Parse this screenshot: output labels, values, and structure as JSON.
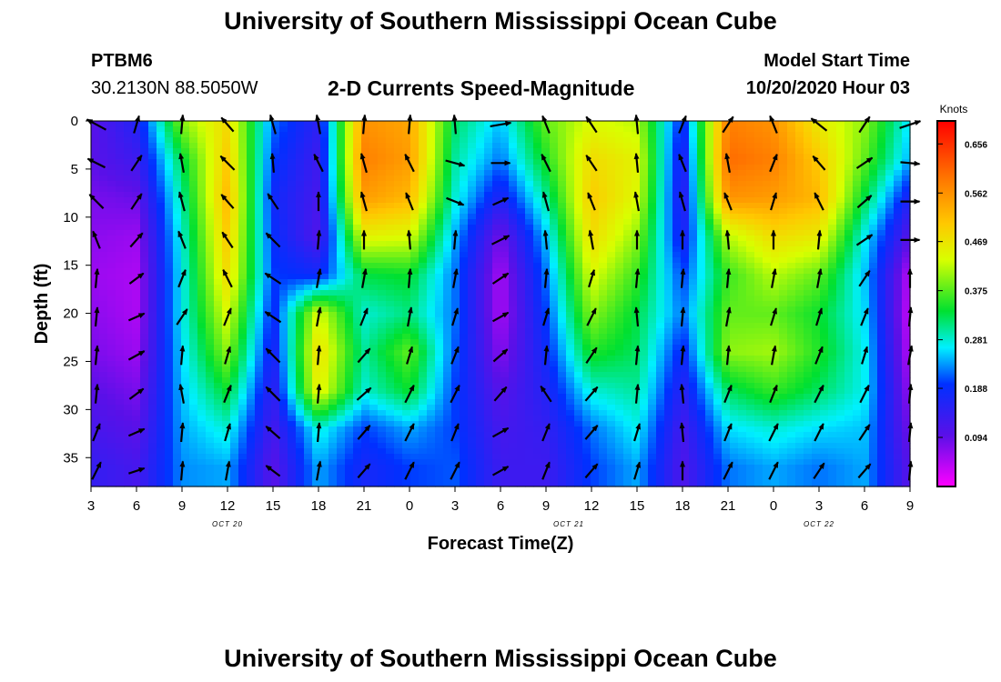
{
  "header": {
    "title": "University of Southern Mississippi Ocean Cube",
    "station_id": "PTBM6",
    "station_coords": "30.2130N 88.5050W",
    "subtitle": "2-D Currents Speed-Magnitude",
    "model_start_label": "Model Start Time",
    "model_start_time": "10/20/2020 Hour 03"
  },
  "footer": {
    "title": "University of Southern Mississippi Ocean Cube"
  },
  "chart_data": {
    "type": "heatmap",
    "xlabel": "Forecast Time(Z)",
    "ylabel": "Depth (ft)",
    "x_range": [
      3,
      57
    ],
    "y_range": [
      0,
      38
    ],
    "y_inverted": true,
    "x_ticks": [
      {
        "x": 3,
        "label": "3"
      },
      {
        "x": 6,
        "label": "6"
      },
      {
        "x": 9,
        "label": "9"
      },
      {
        "x": 12,
        "label": "12"
      },
      {
        "x": 15,
        "label": "15"
      },
      {
        "x": 18,
        "label": "18"
      },
      {
        "x": 21,
        "label": "21"
      },
      {
        "x": 24,
        "label": "0"
      },
      {
        "x": 27,
        "label": "3"
      },
      {
        "x": 30,
        "label": "6"
      },
      {
        "x": 33,
        "label": "9"
      },
      {
        "x": 36,
        "label": "12"
      },
      {
        "x": 39,
        "label": "15"
      },
      {
        "x": 42,
        "label": "18"
      },
      {
        "x": 45,
        "label": "21"
      },
      {
        "x": 48,
        "label": "0"
      },
      {
        "x": 51,
        "label": "3"
      },
      {
        "x": 54,
        "label": "6"
      },
      {
        "x": 57,
        "label": "9"
      }
    ],
    "date_labels": [
      {
        "x": 12,
        "label": "OCT 20"
      },
      {
        "x": 34.5,
        "label": "OCT 21"
      },
      {
        "x": 51,
        "label": "OCT 22"
      }
    ],
    "y_ticks": [
      0,
      5,
      10,
      15,
      20,
      25,
      30,
      35
    ],
    "colorbar": {
      "unit": "Knots",
      "min": 0.0,
      "max": 0.7,
      "ticks": [
        "0.094",
        "0.188",
        "0.281",
        "0.375",
        "0.469",
        "0.562",
        "0.656"
      ]
    },
    "depths": [
      0,
      4,
      8,
      12,
      16,
      20,
      24,
      28,
      32,
      36
    ],
    "times": [
      3,
      6,
      9,
      12,
      15,
      18,
      21,
      24,
      27,
      30,
      33,
      36,
      39,
      42,
      45,
      48,
      51,
      54,
      57
    ],
    "speed": [
      [
        0.1,
        0.16,
        0.4,
        0.48,
        0.22,
        0.15,
        0.56,
        0.54,
        0.32,
        0.25,
        0.38,
        0.44,
        0.42,
        0.18,
        0.58,
        0.56,
        0.46,
        0.4,
        0.26
      ],
      [
        0.1,
        0.13,
        0.33,
        0.5,
        0.2,
        0.13,
        0.58,
        0.55,
        0.3,
        0.22,
        0.35,
        0.48,
        0.45,
        0.15,
        0.6,
        0.58,
        0.5,
        0.38,
        0.24
      ],
      [
        0.08,
        0.09,
        0.3,
        0.52,
        0.18,
        0.12,
        0.55,
        0.52,
        0.28,
        0.16,
        0.3,
        0.5,
        0.44,
        0.14,
        0.56,
        0.55,
        0.52,
        0.33,
        0.16
      ],
      [
        0.07,
        0.06,
        0.28,
        0.5,
        0.19,
        0.11,
        0.45,
        0.44,
        0.24,
        0.08,
        0.25,
        0.48,
        0.4,
        0.16,
        0.42,
        0.48,
        0.46,
        0.27,
        0.1
      ],
      [
        0.06,
        0.05,
        0.27,
        0.48,
        0.2,
        0.18,
        0.33,
        0.34,
        0.22,
        0.05,
        0.22,
        0.44,
        0.36,
        0.2,
        0.36,
        0.42,
        0.38,
        0.25,
        0.04
      ],
      [
        0.07,
        0.05,
        0.27,
        0.44,
        0.18,
        0.44,
        0.28,
        0.31,
        0.22,
        0.05,
        0.2,
        0.4,
        0.33,
        0.22,
        0.38,
        0.38,
        0.34,
        0.26,
        0.03
      ],
      [
        0.08,
        0.06,
        0.26,
        0.4,
        0.16,
        0.48,
        0.3,
        0.38,
        0.21,
        0.07,
        0.18,
        0.35,
        0.32,
        0.18,
        0.4,
        0.41,
        0.35,
        0.27,
        0.04
      ],
      [
        0.1,
        0.08,
        0.25,
        0.34,
        0.14,
        0.46,
        0.28,
        0.34,
        0.2,
        0.1,
        0.16,
        0.28,
        0.3,
        0.15,
        0.32,
        0.36,
        0.32,
        0.27,
        0.06
      ],
      [
        0.12,
        0.1,
        0.24,
        0.28,
        0.12,
        0.28,
        0.2,
        0.24,
        0.2,
        0.12,
        0.14,
        0.22,
        0.27,
        0.12,
        0.26,
        0.28,
        0.26,
        0.25,
        0.08
      ],
      [
        0.14,
        0.12,
        0.23,
        0.24,
        0.1,
        0.24,
        0.17,
        0.2,
        0.21,
        0.13,
        0.13,
        0.2,
        0.24,
        0.11,
        0.22,
        0.24,
        0.22,
        0.24,
        0.1
      ]
    ],
    "vectors": [
      [
        [
          -0.55,
          0.3
        ],
        [
          0.15,
          0.5
        ],
        [
          0.05,
          0.55
        ],
        [
          -0.35,
          0.4
        ],
        [
          -0.15,
          0.55
        ],
        [
          -0.1,
          0.55
        ],
        [
          0.05,
          0.55
        ],
        [
          0.05,
          0.55
        ],
        [
          -0.05,
          0.55
        ],
        [
          0.6,
          0.1
        ],
        [
          -0.2,
          0.5
        ],
        [
          -0.3,
          0.45
        ],
        [
          -0.05,
          0.55
        ],
        [
          0.2,
          0.5
        ],
        [
          0.3,
          0.45
        ],
        [
          -0.2,
          0.5
        ],
        [
          -0.45,
          0.35
        ],
        [
          0.3,
          0.45
        ],
        [
          0.6,
          0.2
        ]
      ],
      [
        [
          -0.5,
          0.25
        ],
        [
          0.3,
          0.45
        ],
        [
          -0.1,
          0.55
        ],
        [
          -0.4,
          0.4
        ],
        [
          -0.05,
          0.55
        ],
        [
          -0.25,
          0.5
        ],
        [
          -0.15,
          0.55
        ],
        [
          -0.25,
          0.5
        ],
        [
          0.55,
          -0.15
        ],
        [
          0.55,
          0.0
        ],
        [
          -0.25,
          0.5
        ],
        [
          -0.3,
          0.45
        ],
        [
          -0.05,
          0.55
        ],
        [
          -0.2,
          0.5
        ],
        [
          -0.1,
          0.55
        ],
        [
          0.2,
          0.5
        ],
        [
          -0.35,
          0.4
        ],
        [
          0.45,
          0.3
        ],
        [
          0.55,
          -0.05
        ]
      ],
      [
        [
          -0.4,
          0.4
        ],
        [
          0.3,
          0.45
        ],
        [
          -0.15,
          0.55
        ],
        [
          -0.35,
          0.4
        ],
        [
          -0.3,
          0.45
        ],
        [
          0.0,
          0.55
        ],
        [
          -0.15,
          0.55
        ],
        [
          -0.2,
          0.5
        ],
        [
          0.5,
          -0.2
        ],
        [
          0.45,
          0.2
        ],
        [
          -0.15,
          0.55
        ],
        [
          -0.2,
          0.5
        ],
        [
          -0.1,
          0.55
        ],
        [
          -0.15,
          0.55
        ],
        [
          -0.2,
          0.5
        ],
        [
          0.15,
          0.5
        ],
        [
          -0.25,
          0.5
        ],
        [
          0.4,
          0.35
        ],
        [
          0.55,
          0.0
        ]
      ],
      [
        [
          -0.2,
          0.5
        ],
        [
          0.35,
          0.4
        ],
        [
          -0.2,
          0.5
        ],
        [
          -0.3,
          0.45
        ],
        [
          -0.4,
          0.4
        ],
        [
          0.05,
          0.55
        ],
        [
          0.0,
          0.55
        ],
        [
          -0.05,
          0.55
        ],
        [
          0.05,
          0.55
        ],
        [
          0.5,
          0.25
        ],
        [
          -0.05,
          0.55
        ],
        [
          -0.1,
          0.55
        ],
        [
          0.0,
          0.55
        ],
        [
          0.0,
          0.55
        ],
        [
          -0.05,
          0.55
        ],
        [
          0.0,
          0.55
        ],
        [
          0.05,
          0.55
        ],
        [
          0.45,
          0.3
        ],
        [
          0.55,
          0.0
        ]
      ],
      [
        [
          0.05,
          0.55
        ],
        [
          0.4,
          0.3
        ],
        [
          0.2,
          0.5
        ],
        [
          -0.25,
          0.5
        ],
        [
          -0.45,
          0.3
        ],
        [
          0.1,
          0.55
        ],
        [
          0.1,
          0.55
        ],
        [
          0.05,
          0.55
        ],
        [
          0.1,
          0.55
        ],
        [
          0.45,
          0.3
        ],
        [
          0.05,
          0.55
        ],
        [
          0.15,
          0.5
        ],
        [
          0.05,
          0.55
        ],
        [
          0.05,
          0.55
        ],
        [
          0.05,
          0.55
        ],
        [
          0.1,
          0.55
        ],
        [
          0.1,
          0.55
        ],
        [
          0.3,
          0.45
        ],
        [
          0.0,
          0.55
        ]
      ],
      [
        [
          0.05,
          0.55
        ],
        [
          0.45,
          0.2
        ],
        [
          0.3,
          0.45
        ],
        [
          0.2,
          0.5
        ],
        [
          -0.45,
          0.3
        ],
        [
          0.1,
          0.55
        ],
        [
          0.2,
          0.5
        ],
        [
          0.1,
          0.55
        ],
        [
          0.15,
          0.5
        ],
        [
          0.45,
          0.25
        ],
        [
          0.15,
          0.5
        ],
        [
          0.25,
          0.5
        ],
        [
          -0.05,
          0.55
        ],
        [
          0.05,
          0.55
        ],
        [
          0.1,
          0.55
        ],
        [
          0.15,
          0.5
        ],
        [
          0.15,
          0.5
        ],
        [
          0.2,
          0.5
        ],
        [
          0.05,
          0.55
        ]
      ],
      [
        [
          0.05,
          0.55
        ],
        [
          0.45,
          0.25
        ],
        [
          0.05,
          0.55
        ],
        [
          0.15,
          0.5
        ],
        [
          -0.4,
          0.4
        ],
        [
          0.05,
          0.55
        ],
        [
          0.35,
          0.4
        ],
        [
          0.15,
          0.5
        ],
        [
          0.2,
          0.5
        ],
        [
          0.4,
          0.35
        ],
        [
          0.05,
          0.55
        ],
        [
          0.3,
          0.45
        ],
        [
          0.05,
          0.55
        ],
        [
          0.05,
          0.55
        ],
        [
          0.05,
          0.55
        ],
        [
          0.1,
          0.55
        ],
        [
          0.2,
          0.5
        ],
        [
          0.15,
          0.5
        ],
        [
          0.1,
          0.55
        ]
      ],
      [
        [
          0.05,
          0.55
        ],
        [
          0.4,
          0.3
        ],
        [
          -0.1,
          0.55
        ],
        [
          0.2,
          0.5
        ],
        [
          -0.4,
          0.4
        ],
        [
          0.05,
          0.55
        ],
        [
          0.4,
          0.35
        ],
        [
          0.25,
          0.5
        ],
        [
          0.25,
          0.5
        ],
        [
          0.35,
          0.4
        ],
        [
          -0.3,
          0.45
        ],
        [
          0.35,
          0.4
        ],
        [
          0.05,
          0.55
        ],
        [
          -0.05,
          0.55
        ],
        [
          0.2,
          0.5
        ],
        [
          0.2,
          0.5
        ],
        [
          0.25,
          0.5
        ],
        [
          0.25,
          0.5
        ],
        [
          0.05,
          0.55
        ]
      ],
      [
        [
          0.2,
          0.5
        ],
        [
          0.45,
          0.2
        ],
        [
          0.05,
          0.55
        ],
        [
          0.15,
          0.5
        ],
        [
          -0.4,
          0.35
        ],
        [
          0.05,
          0.55
        ],
        [
          0.35,
          0.4
        ],
        [
          0.25,
          0.5
        ],
        [
          0.2,
          0.5
        ],
        [
          0.45,
          0.25
        ],
        [
          0.2,
          0.5
        ],
        [
          0.35,
          0.4
        ],
        [
          0.15,
          0.5
        ],
        [
          -0.05,
          0.55
        ],
        [
          0.2,
          0.5
        ],
        [
          0.25,
          0.5
        ],
        [
          0.25,
          0.5
        ],
        [
          0.3,
          0.45
        ],
        [
          0.05,
          0.55
        ]
      ],
      [
        [
          0.25,
          0.5
        ],
        [
          0.45,
          0.15
        ],
        [
          0.05,
          0.55
        ],
        [
          0.1,
          0.55
        ],
        [
          -0.4,
          0.3
        ],
        [
          0.1,
          0.55
        ],
        [
          0.35,
          0.4
        ],
        [
          0.25,
          0.5
        ],
        [
          0.25,
          0.5
        ],
        [
          0.45,
          0.25
        ],
        [
          0.2,
          0.5
        ],
        [
          0.35,
          0.4
        ],
        [
          0.15,
          0.5
        ],
        [
          0.0,
          0.55
        ],
        [
          0.25,
          0.5
        ],
        [
          0.25,
          0.5
        ],
        [
          0.3,
          0.45
        ],
        [
          0.35,
          0.4
        ],
        [
          0.05,
          0.55
        ]
      ]
    ]
  }
}
